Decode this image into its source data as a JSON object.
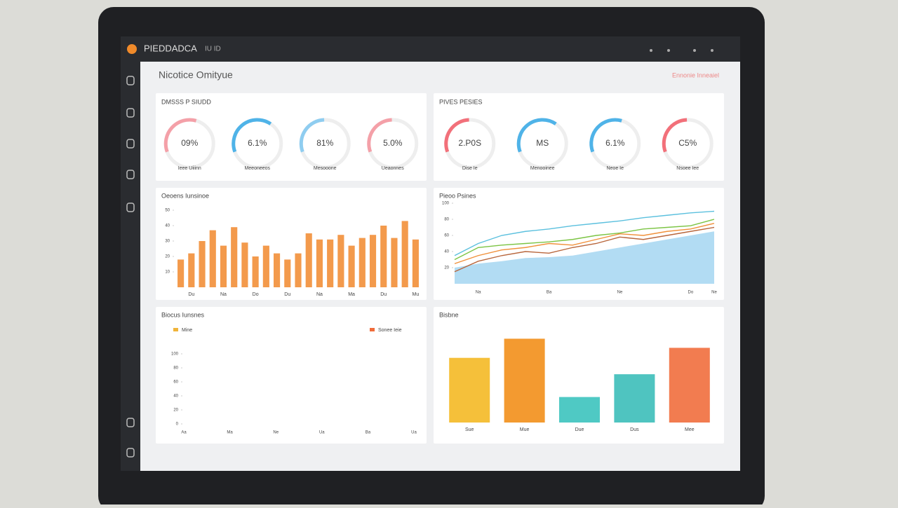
{
  "app": {
    "name": "PIEDDADCA",
    "menu": "IU ID"
  },
  "header": {
    "title": "Nicotice Omityue",
    "right": "Ennonie Inneaiel"
  },
  "kpis": [
    {
      "title": "DMSSS P SIUDD",
      "items": [
        {
          "value": "09%",
          "label": "Ieee Uiiinn",
          "level": 35,
          "color": "#f4a0a8"
        },
        {
          "value": "6.1%",
          "label": "Meeoneeos",
          "level": 40,
          "color": "#4fb3e8"
        },
        {
          "value": "81%",
          "label": "Mesooone",
          "level": 30,
          "color": "#8fcdf0"
        },
        {
          "value": "5.0%",
          "label": "Ueaonnes",
          "level": 30,
          "color": "#f4a0a8"
        }
      ]
    },
    {
      "title": "PIVES PESIES",
      "items": [
        {
          "value": "2.P0S",
          "label": "Dise Ie",
          "level": 30,
          "color": "#f2707a"
        },
        {
          "value": "MS",
          "label": "Menooinee",
          "level": 40,
          "color": "#4fb3e8"
        },
        {
          "value": "6.1%",
          "label": "Neoe Ie",
          "level": 35,
          "color": "#4fb3e8"
        },
        {
          "value": "C5%",
          "label": "Nsoee Iee",
          "level": 30,
          "color": "#f2707a"
        }
      ]
    }
  ],
  "chart_data": [
    {
      "type": "bar",
      "title": "Oeoens Iunsinoe",
      "color": "#f39a4c",
      "categories": [
        null,
        "Du",
        null,
        null,
        "Na",
        null,
        null,
        "Do",
        null,
        null,
        "Du",
        null,
        null,
        "Na",
        null,
        null,
        "Ma",
        null,
        null,
        "Du",
        null,
        null,
        "Mu"
      ],
      "values": [
        18,
        22,
        30,
        37,
        27,
        39,
        29,
        20,
        27,
        22,
        18,
        22,
        35,
        31,
        31,
        34,
        27,
        32,
        34,
        40,
        32,
        43,
        31
      ],
      "ylim": [
        0,
        50
      ],
      "yticks": [
        10,
        20,
        30,
        40,
        50
      ]
    },
    {
      "type": "line",
      "title": "Pieoo Psines",
      "categories": [
        null,
        "Na",
        null,
        null,
        "Ba",
        null,
        null,
        "Ne",
        null,
        null,
        "Do",
        "Ne"
      ],
      "ylim": [
        0,
        100
      ],
      "yticks": [
        20,
        40,
        60,
        80,
        100
      ],
      "series": [
        {
          "color": "#9fd3f0",
          "area": true,
          "values": [
            20,
            25,
            28,
            32,
            33,
            35,
            40,
            45,
            50,
            55,
            60,
            65
          ]
        },
        {
          "color": "#5bc0de",
          "values": [
            35,
            50,
            60,
            65,
            68,
            72,
            75,
            78,
            82,
            85,
            88,
            90
          ]
        },
        {
          "color": "#7cc444",
          "values": [
            30,
            45,
            48,
            50,
            52,
            55,
            60,
            63,
            68,
            70,
            72,
            80
          ]
        },
        {
          "color": "#f0903a",
          "values": [
            25,
            35,
            42,
            45,
            50,
            48,
            55,
            62,
            60,
            65,
            68,
            75
          ]
        },
        {
          "color": "#b8663c",
          "values": [
            15,
            28,
            35,
            40,
            38,
            45,
            50,
            58,
            55,
            60,
            65,
            70
          ]
        }
      ]
    },
    {
      "type": "line",
      "title": "Biocus Iunsnes",
      "categories": [
        "Aa",
        "Ma",
        "Ne",
        "Ua",
        "Ba",
        "Ua"
      ],
      "ylim": [
        0,
        100
      ],
      "yticks": [
        0,
        20,
        40,
        60,
        80,
        100
      ],
      "series": [
        {
          "name": "Mine",
          "color": "#f0b43a",
          "values": [
            null,
            null,
            null,
            null,
            null,
            null
          ]
        },
        {
          "name": "Sonee Ieie",
          "color": "#f06c3a",
          "values": [
            null,
            null,
            null,
            null,
            null,
            null
          ]
        }
      ]
    },
    {
      "type": "bar",
      "title": "Bisbne",
      "categories": [
        "Sue",
        "Mue",
        "Due",
        "Dus",
        "Mee"
      ],
      "colors": [
        "#f5c03a",
        "#f39a30",
        "#4fc9c4",
        "#4fc4c0",
        "#f27c50"
      ],
      "values": [
        71,
        92,
        28,
        53,
        82
      ],
      "ylim": [
        0,
        100
      ]
    }
  ]
}
